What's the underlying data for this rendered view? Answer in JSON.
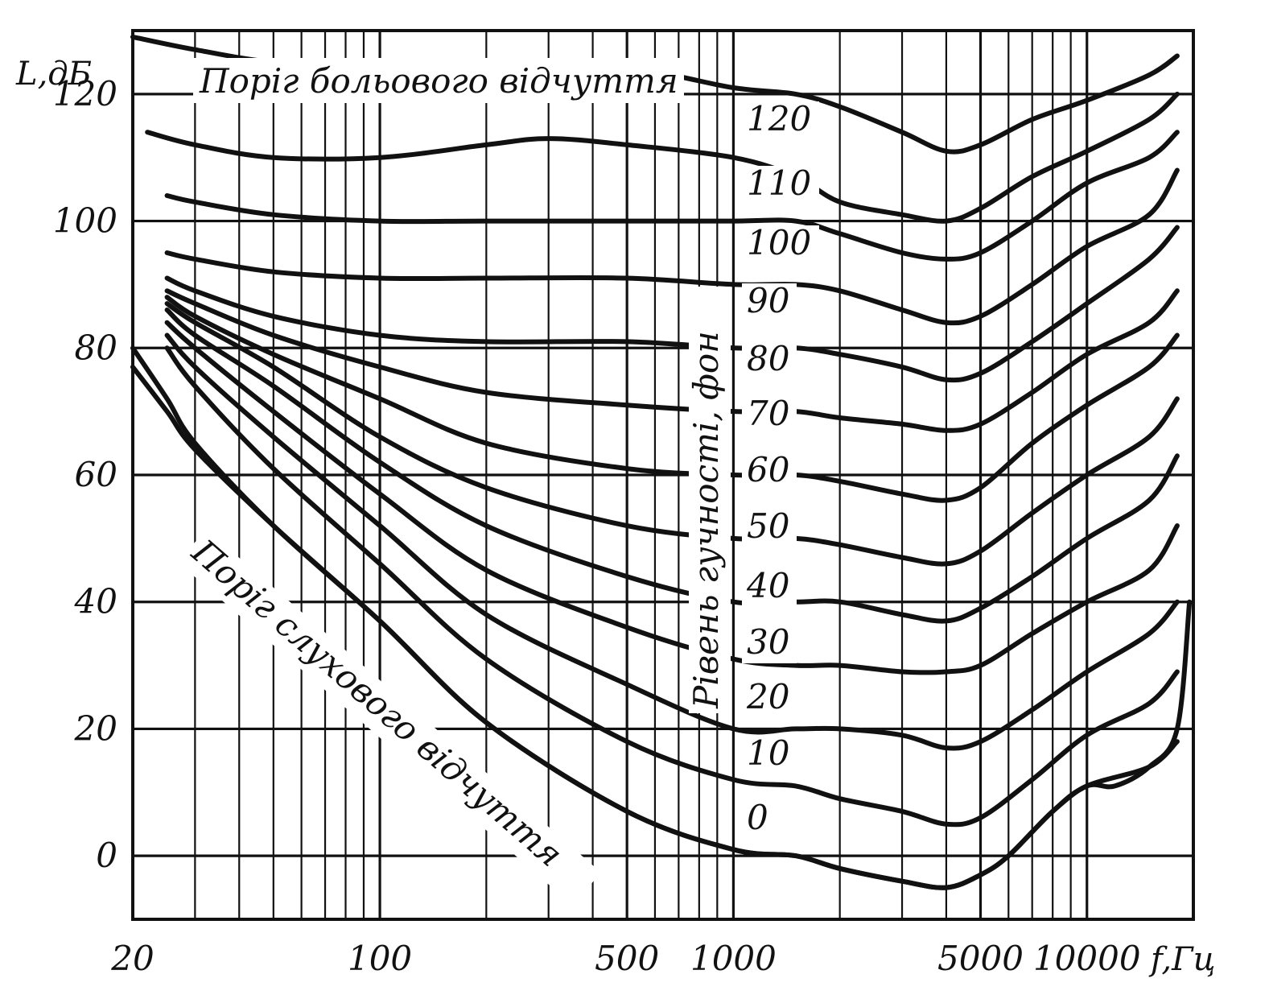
{
  "chart_data": {
    "type": "line",
    "title": "",
    "xlabel": "f,Гц",
    "ylabel": "L,дБ",
    "x_scale": "log",
    "xlim": [
      20,
      20000
    ],
    "ylim": [
      -10,
      130
    ],
    "grid": true,
    "x_tick_labels": [
      {
        "value": 20,
        "label": "20"
      },
      {
        "value": 100,
        "label": "100"
      },
      {
        "value": 500,
        "label": "500"
      },
      {
        "value": 1000,
        "label": "1000"
      },
      {
        "value": 5000,
        "label": "5000"
      },
      {
        "value": 10000,
        "label": "10000"
      }
    ],
    "y_tick_labels": [
      {
        "value": 0,
        "label": "0"
      },
      {
        "value": 20,
        "label": "20"
      },
      {
        "value": 40,
        "label": "40"
      },
      {
        "value": 60,
        "label": "60"
      },
      {
        "value": 80,
        "label": "80"
      },
      {
        "value": 100,
        "label": "100"
      },
      {
        "value": 120,
        "label": "120"
      }
    ],
    "annotations": {
      "pain_threshold": "Поріг больового відчуття",
      "hearing_threshold": "Поріг слухового відчуття",
      "loudness_level": "Рівень гучності, фон"
    },
    "series": [
      {
        "name": "120",
        "x": [
          20,
          30,
          50,
          100,
          200,
          500,
          1000,
          1500,
          2000,
          3000,
          4000,
          5000,
          7000,
          10000,
          15000,
          18000
        ],
        "y": [
          129,
          127,
          125,
          124,
          124,
          124,
          121,
          120,
          118,
          114,
          111,
          112,
          116,
          119,
          123,
          126
        ]
      },
      {
        "name": "110",
        "x": [
          22,
          30,
          50,
          100,
          200,
          300,
          500,
          1000,
          1500,
          2000,
          3000,
          4000,
          5000,
          7000,
          10000,
          15000,
          18000
        ],
        "y": [
          114,
          112,
          110,
          110,
          112,
          113,
          112,
          110,
          107,
          103,
          101,
          100,
          102,
          107,
          111,
          116,
          120
        ]
      },
      {
        "name": "100",
        "x": [
          25,
          30,
          50,
          100,
          200,
          500,
          1000,
          1500,
          2000,
          3000,
          4000,
          5000,
          7000,
          10000,
          15000,
          18000
        ],
        "y": [
          104,
          103,
          101,
          100,
          100,
          100,
          100,
          100,
          98,
          95,
          94,
          95,
          100,
          106,
          110,
          114
        ]
      },
      {
        "name": "90",
        "x": [
          25,
          30,
          50,
          100,
          200,
          500,
          1000,
          1500,
          2000,
          3000,
          4000,
          5000,
          7000,
          10000,
          15000,
          18000
        ],
        "y": [
          95,
          94,
          92,
          91,
          91,
          91,
          90,
          90,
          89,
          86,
          84,
          85,
          90,
          96,
          101,
          108
        ]
      },
      {
        "name": "80",
        "x": [
          25,
          30,
          50,
          100,
          200,
          500,
          1000,
          1500,
          2000,
          3000,
          4000,
          5000,
          7000,
          10000,
          15000,
          18000
        ],
        "y": [
          91,
          89,
          85,
          82,
          81,
          81,
          80,
          80,
          79,
          77,
          75,
          76,
          81,
          87,
          94,
          99
        ]
      },
      {
        "name": "70",
        "x": [
          25,
          30,
          50,
          100,
          200,
          500,
          1000,
          1500,
          2000,
          3000,
          4000,
          5000,
          7000,
          10000,
          15000,
          18000
        ],
        "y": [
          89,
          87,
          82,
          77,
          73,
          71,
          70,
          70,
          69,
          68,
          67,
          68,
          73,
          79,
          84,
          89
        ]
      },
      {
        "name": "60",
        "x": [
          25,
          30,
          50,
          100,
          200,
          500,
          1000,
          1500,
          2000,
          3000,
          4000,
          5000,
          7000,
          10000,
          15000,
          18000
        ],
        "y": [
          88,
          85,
          79,
          72,
          65,
          61,
          60,
          60,
          59,
          57,
          56,
          58,
          65,
          71,
          77,
          82
        ]
      },
      {
        "name": "50",
        "x": [
          25,
          30,
          50,
          100,
          200,
          500,
          1000,
          1500,
          2000,
          3000,
          4000,
          5000,
          7000,
          10000,
          15000,
          18000
        ],
        "y": [
          87,
          84,
          77,
          66,
          58,
          52,
          50,
          50,
          49,
          47,
          46,
          48,
          54,
          60,
          66,
          72
        ]
      },
      {
        "name": "40",
        "x": [
          25,
          30,
          50,
          100,
          200,
          500,
          1000,
          1500,
          2000,
          3000,
          4000,
          5000,
          7000,
          10000,
          15000,
          18000
        ],
        "y": [
          86,
          82,
          74,
          62,
          52,
          44,
          40,
          40,
          40,
          38,
          37,
          39,
          44,
          50,
          56,
          63
        ]
      },
      {
        "name": "30",
        "x": [
          25,
          30,
          50,
          100,
          200,
          500,
          1000,
          1500,
          2000,
          3000,
          4000,
          5000,
          7000,
          10000,
          15000,
          18000
        ],
        "y": [
          84,
          80,
          70,
          57,
          45,
          36,
          31,
          30,
          30,
          29,
          29,
          30,
          35,
          40,
          45,
          52
        ]
      },
      {
        "name": "20",
        "x": [
          25,
          30,
          50,
          100,
          200,
          500,
          1000,
          1500,
          2000,
          3000,
          4000,
          5000,
          7000,
          10000,
          15000,
          18000
        ],
        "y": [
          82,
          77,
          66,
          52,
          38,
          27,
          20,
          20,
          20,
          19,
          17,
          18,
          23,
          29,
          35,
          40
        ]
      },
      {
        "name": "10",
        "x": [
          25,
          30,
          50,
          100,
          200,
          500,
          1000,
          1500,
          2000,
          3000,
          4000,
          5000,
          7000,
          10000,
          15000,
          18000
        ],
        "y": [
          80,
          74,
          61,
          46,
          31,
          18,
          12,
          11,
          9,
          7,
          5,
          6,
          12,
          19,
          24,
          29
        ]
      },
      {
        "name": "0",
        "x": [
          20,
          25,
          30,
          50,
          100,
          200,
          500,
          1000,
          1500,
          2000,
          3000,
          4000,
          5000,
          6000,
          8000,
          10000,
          15000,
          18000
        ],
        "y": [
          77,
          70,
          64,
          52,
          37,
          21,
          7,
          1,
          0,
          -2,
          -4,
          -5,
          -3,
          0,
          7,
          11,
          14,
          18
        ]
      },
      {
        "name": "Поріг слухового відчуття",
        "x": [
          20,
          25,
          30,
          50,
          100,
          200,
          500,
          1000,
          1500,
          2000,
          3000,
          4000,
          5000,
          6000,
          8000,
          10000,
          12000,
          15000,
          18000,
          19500
        ],
        "y": [
          80,
          72,
          65,
          52,
          37,
          21,
          7,
          1,
          0,
          -2,
          -4,
          -5,
          -3,
          0,
          7,
          11,
          11,
          14,
          20,
          40
        ]
      }
    ]
  }
}
